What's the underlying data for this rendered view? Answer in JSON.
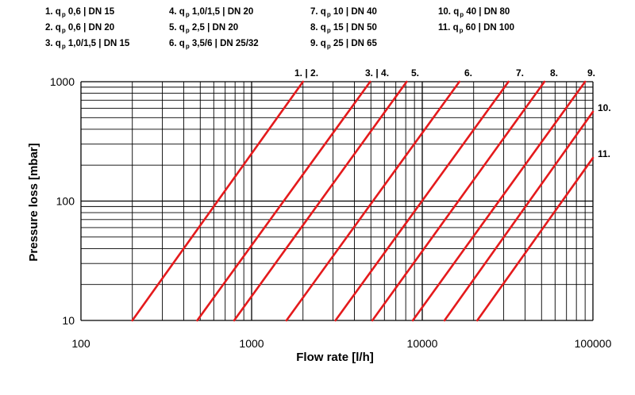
{
  "legend": [
    {
      "num": "1.",
      "q": "q",
      "sub": "p",
      "spec": "0,6 | DN 15"
    },
    {
      "num": "2.",
      "q": "q",
      "sub": "p",
      "spec": "0,6 | DN 20"
    },
    {
      "num": "3.",
      "q": "q",
      "sub": "p",
      "spec": "1,0/1,5 | DN 15"
    },
    {
      "num": "4.",
      "q": "q",
      "sub": "p",
      "spec": "1,0/1,5 | DN 20"
    },
    {
      "num": "5.",
      "q": "q",
      "sub": "p",
      "spec": "2,5 | DN 20"
    },
    {
      "num": "6.",
      "q": "q",
      "sub": "p",
      "spec": "3,5/6 | DN 25/32"
    },
    {
      "num": "7.",
      "q": "q",
      "sub": "p",
      "spec": "10 | DN 40"
    },
    {
      "num": "8.",
      "q": "q",
      "sub": "p",
      "spec": "15 | DN 50"
    },
    {
      "num": "9.",
      "q": "q",
      "sub": "p",
      "spec": "25 | DN 65"
    },
    {
      "num": "10.",
      "q": "q",
      "sub": "p",
      "spec": "40 | DN 80"
    },
    {
      "num": "11.",
      "q": "q",
      "sub": "p",
      "spec": "60 | DN 100"
    }
  ],
  "chart_data": {
    "type": "line",
    "xlabel": "Flow rate [l/h]",
    "ylabel": "Pressure loss [mbar]",
    "x_scale": "log",
    "y_scale": "log",
    "xlim": [
      100,
      100000
    ],
    "ylim": [
      10,
      1000
    ],
    "x_ticks": [
      "100",
      "1000",
      "10000",
      "100000"
    ],
    "y_ticks": [
      "10",
      "100",
      "1000"
    ],
    "grid": true,
    "line_color": "#e41a1c",
    "series_labels": [
      "1. | 2.",
      "3. | 4.",
      "5.",
      "6.",
      "7.",
      "8.",
      "9.",
      "10.",
      "11."
    ],
    "series": [
      {
        "name": "1. | 2.",
        "x": [
          200,
          2000
        ],
        "y": [
          10,
          1000
        ]
      },
      {
        "name": "3. | 4.",
        "x": [
          480,
          4950
        ],
        "y": [
          10,
          1000
        ]
      },
      {
        "name": "5.",
        "x": [
          790,
          8100
        ],
        "y": [
          10,
          1000
        ]
      },
      {
        "name": "6.",
        "x": [
          1600,
          16500
        ],
        "y": [
          10,
          1000
        ]
      },
      {
        "name": "7.",
        "x": [
          3100,
          32000
        ],
        "y": [
          10,
          1000
        ]
      },
      {
        "name": "8.",
        "x": [
          5100,
          52000
        ],
        "y": [
          10,
          1000
        ]
      },
      {
        "name": "9.",
        "x": [
          8800,
          90000
        ],
        "y": [
          10,
          1000
        ]
      },
      {
        "name": "10.",
        "x": [
          13500,
          100000
        ],
        "y": [
          10,
          560
        ]
      },
      {
        "name": "11.",
        "x": [
          21000,
          100000
        ],
        "y": [
          10,
          230
        ]
      }
    ]
  }
}
